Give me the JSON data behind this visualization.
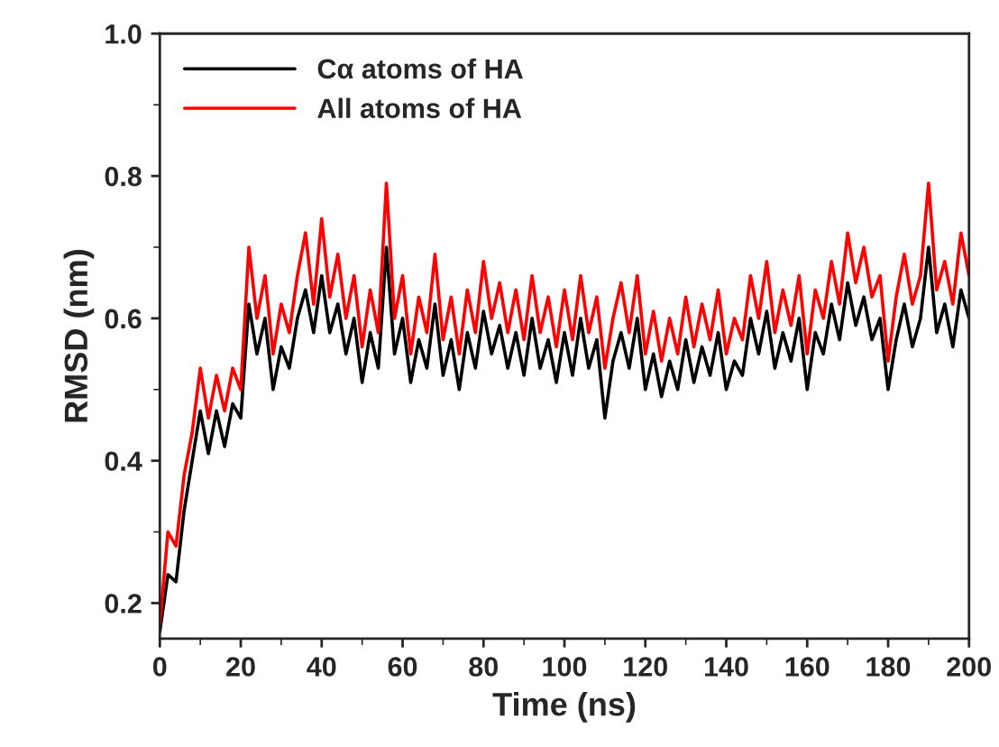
{
  "chart_data": {
    "type": "line",
    "xlabel": "Time (ns)",
    "ylabel": "RMSD (nm)",
    "x": [
      0,
      2,
      4,
      6,
      8,
      10,
      12,
      14,
      16,
      18,
      20,
      22,
      24,
      26,
      28,
      30,
      32,
      34,
      36,
      38,
      40,
      42,
      44,
      46,
      48,
      50,
      52,
      54,
      56,
      58,
      60,
      62,
      64,
      66,
      68,
      70,
      72,
      74,
      76,
      78,
      80,
      82,
      84,
      86,
      88,
      90,
      92,
      94,
      96,
      98,
      100,
      102,
      104,
      106,
      108,
      110,
      112,
      114,
      116,
      118,
      120,
      122,
      124,
      126,
      128,
      130,
      132,
      134,
      136,
      138,
      140,
      142,
      144,
      146,
      148,
      150,
      152,
      154,
      156,
      158,
      160,
      162,
      164,
      166,
      168,
      170,
      172,
      174,
      176,
      178,
      180,
      182,
      184,
      186,
      188,
      190,
      192,
      194,
      196,
      198,
      200
    ],
    "series": [
      {
        "name": "Cα atoms of HA",
        "color": "#000000",
        "values": [
          0.16,
          0.24,
          0.23,
          0.33,
          0.4,
          0.47,
          0.41,
          0.47,
          0.42,
          0.48,
          0.46,
          0.62,
          0.55,
          0.6,
          0.5,
          0.56,
          0.53,
          0.6,
          0.64,
          0.58,
          0.66,
          0.58,
          0.62,
          0.55,
          0.6,
          0.51,
          0.58,
          0.53,
          0.7,
          0.55,
          0.6,
          0.51,
          0.57,
          0.53,
          0.62,
          0.52,
          0.57,
          0.5,
          0.58,
          0.53,
          0.61,
          0.55,
          0.59,
          0.53,
          0.58,
          0.52,
          0.6,
          0.53,
          0.57,
          0.51,
          0.58,
          0.52,
          0.6,
          0.53,
          0.57,
          0.46,
          0.54,
          0.58,
          0.53,
          0.6,
          0.5,
          0.55,
          0.49,
          0.54,
          0.5,
          0.57,
          0.51,
          0.56,
          0.52,
          0.58,
          0.5,
          0.54,
          0.52,
          0.6,
          0.55,
          0.61,
          0.53,
          0.58,
          0.54,
          0.6,
          0.5,
          0.58,
          0.55,
          0.62,
          0.57,
          0.65,
          0.59,
          0.63,
          0.57,
          0.6,
          0.5,
          0.57,
          0.62,
          0.56,
          0.6,
          0.7,
          0.58,
          0.62,
          0.56,
          0.64,
          0.6
        ]
      },
      {
        "name": "All atoms of HA",
        "color": "#ff0000",
        "values": [
          0.17,
          0.3,
          0.28,
          0.38,
          0.44,
          0.53,
          0.46,
          0.52,
          0.47,
          0.53,
          0.5,
          0.7,
          0.6,
          0.66,
          0.55,
          0.62,
          0.58,
          0.66,
          0.72,
          0.62,
          0.74,
          0.63,
          0.69,
          0.6,
          0.66,
          0.56,
          0.64,
          0.58,
          0.79,
          0.6,
          0.66,
          0.55,
          0.63,
          0.58,
          0.69,
          0.57,
          0.63,
          0.55,
          0.64,
          0.58,
          0.68,
          0.6,
          0.65,
          0.58,
          0.64,
          0.57,
          0.66,
          0.58,
          0.63,
          0.56,
          0.64,
          0.57,
          0.66,
          0.58,
          0.63,
          0.53,
          0.6,
          0.65,
          0.58,
          0.66,
          0.55,
          0.61,
          0.54,
          0.6,
          0.55,
          0.63,
          0.56,
          0.62,
          0.57,
          0.64,
          0.55,
          0.6,
          0.57,
          0.66,
          0.6,
          0.68,
          0.58,
          0.64,
          0.59,
          0.66,
          0.55,
          0.64,
          0.6,
          0.68,
          0.62,
          0.72,
          0.65,
          0.7,
          0.63,
          0.66,
          0.54,
          0.63,
          0.69,
          0.62,
          0.66,
          0.79,
          0.64,
          0.68,
          0.62,
          0.72,
          0.66
        ]
      }
    ],
    "xlim": [
      0,
      200
    ],
    "xticks": [
      0,
      20,
      40,
      60,
      80,
      100,
      120,
      140,
      160,
      180,
      200
    ],
    "ylim": [
      0.15,
      1.0
    ],
    "yticks": [
      {
        "value": 0.2,
        "label": "0.2"
      },
      {
        "value": 0.4,
        "label": "0.4"
      },
      {
        "value": 0.6,
        "label": "0.6"
      },
      {
        "value": 0.8,
        "label": "0.8"
      },
      {
        "value": 1.0,
        "label": "1.0"
      }
    ],
    "legend": "top left",
    "grid": false,
    "marker": "none",
    "line_style": "solid"
  }
}
